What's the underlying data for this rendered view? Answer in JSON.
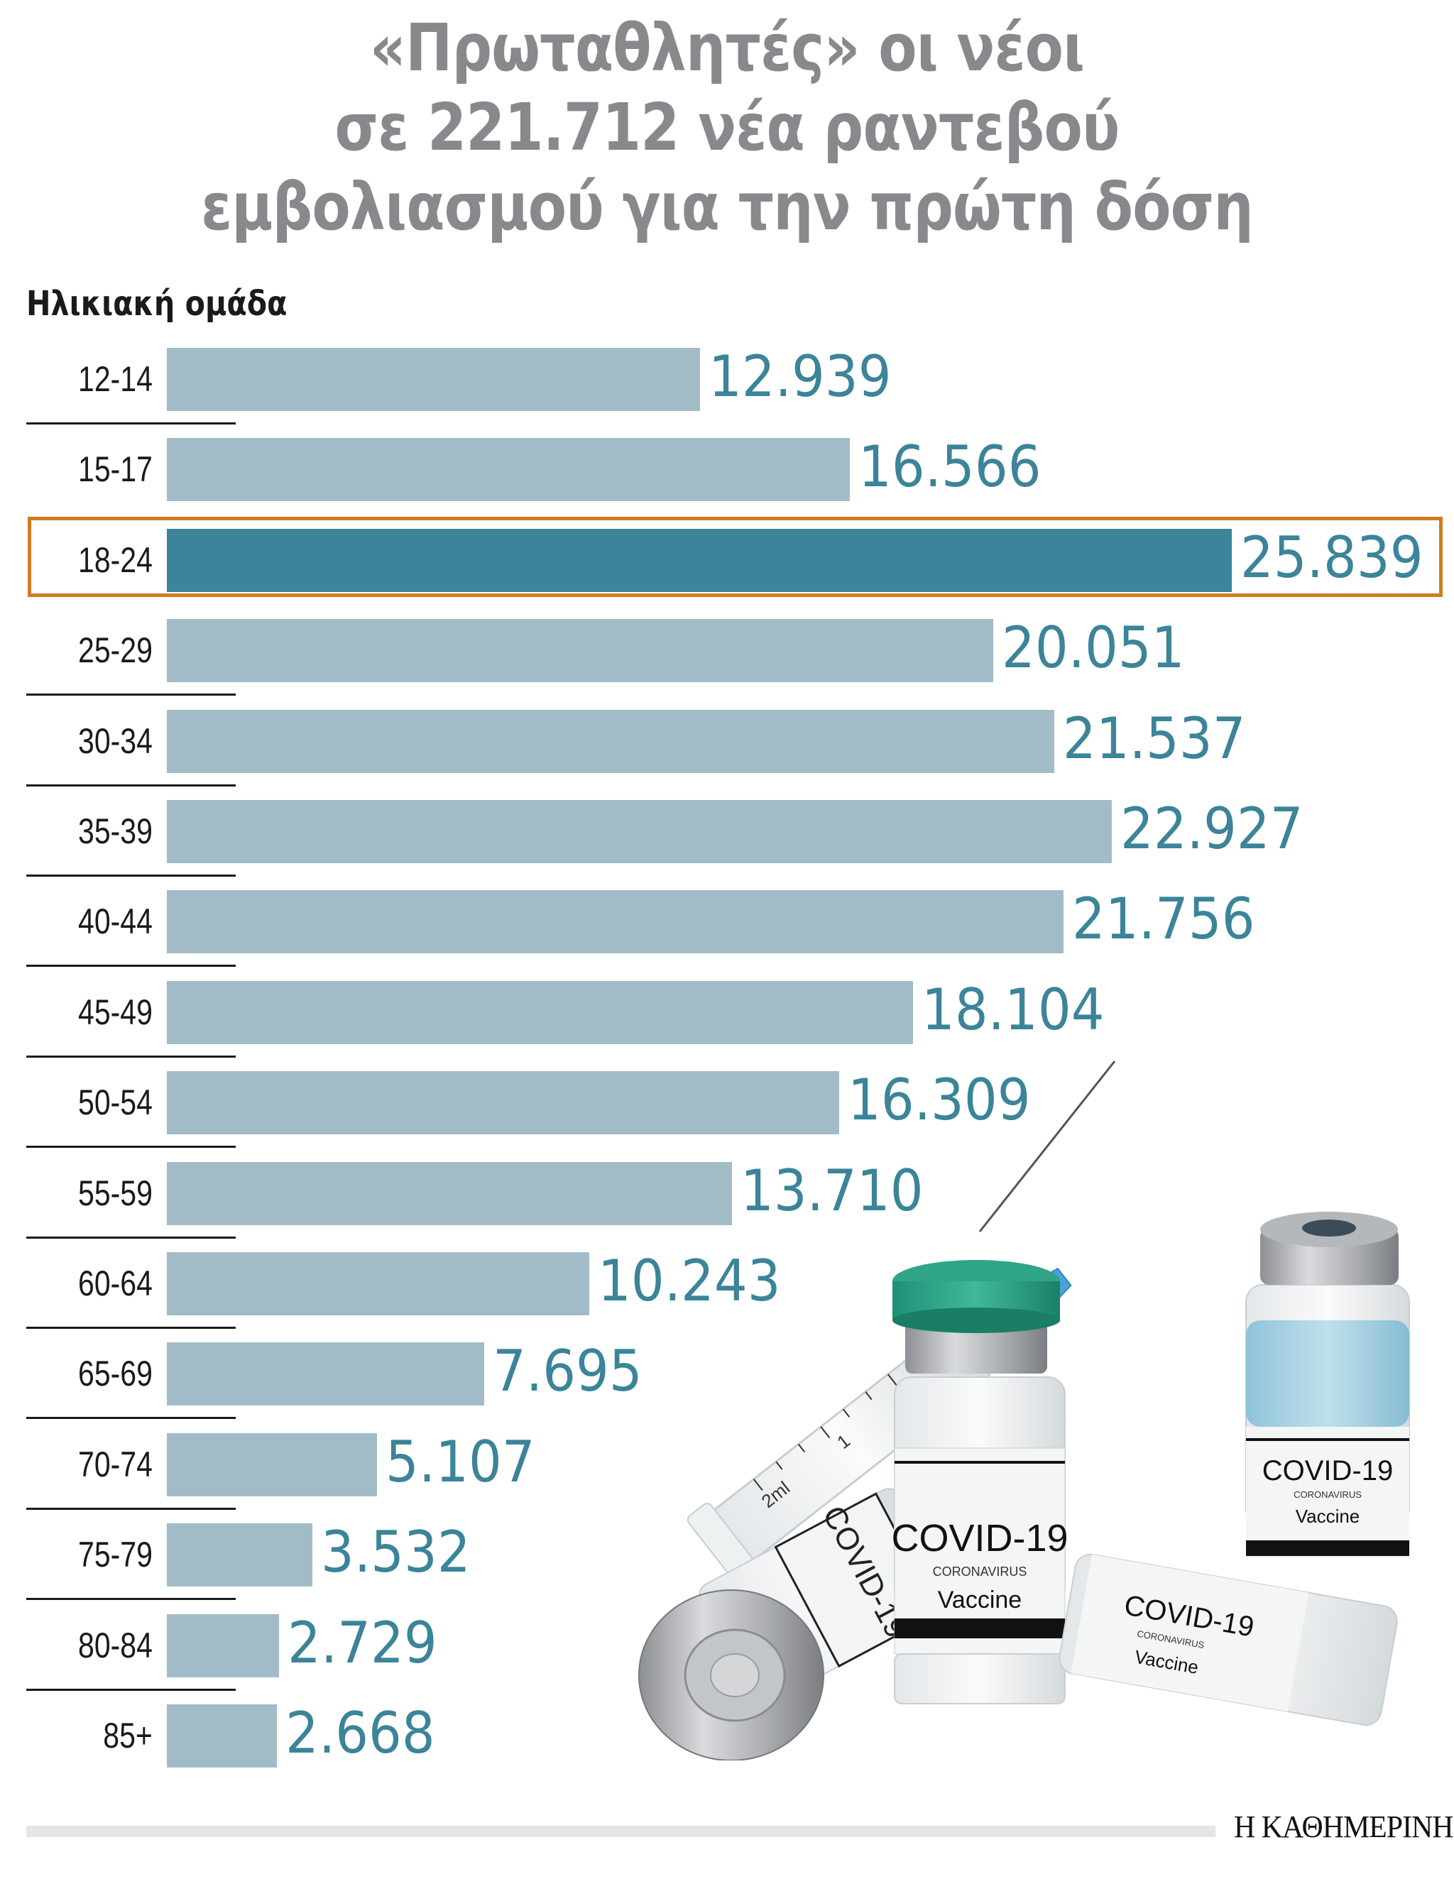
{
  "title": {
    "lines": [
      "«Πρωταθλητές» οι νέοι",
      "σε 221.712 νέα ραντεβού",
      "εμβολιασμού για την πρώτη δόση"
    ]
  },
  "axis_label": "Ηλικιακή ομάδα",
  "footer": {
    "logo": "Η ΚΑΘΗΜΕΡΙΝΗ"
  },
  "illustration": {
    "vial_labels": [
      "COVID-19",
      "CORONAVIRUS",
      "Vaccine"
    ],
    "syringe_marks": [
      "1",
      "2ml"
    ]
  },
  "colors": {
    "bar": "#a2bcc7",
    "bar_highlight": "#3b8499",
    "value_text": "#3b8499",
    "title_text": "#87898c",
    "highlight_border": "#d07d1e"
  },
  "rows": [
    {
      "label": "12-14",
      "value": "12.939"
    },
    {
      "label": "15-17",
      "value": "16.566"
    },
    {
      "label": "18-24",
      "value": "25.839"
    },
    {
      "label": "25-29",
      "value": "20.051"
    },
    {
      "label": "30-34",
      "value": "21.537"
    },
    {
      "label": "35-39",
      "value": "22.927"
    },
    {
      "label": "40-44",
      "value": "21.756"
    },
    {
      "label": "45-49",
      "value": "18.104"
    },
    {
      "label": "50-54",
      "value": "16.309"
    },
    {
      "label": "55-59",
      "value": "13.710"
    },
    {
      "label": "60-64",
      "value": "10.243"
    },
    {
      "label": "65-69",
      "value": "7.695"
    },
    {
      "label": "70-74",
      "value": "5.107"
    },
    {
      "label": "75-79",
      "value": "3.532"
    },
    {
      "label": "80-84",
      "value": "2.729"
    },
    {
      "label": "85+",
      "value": "2.668"
    }
  ],
  "chart_data": {
    "type": "bar",
    "orientation": "horizontal",
    "title": "«Πρωταθλητές» οι νέοι σε 221.712 νέα ραντεβού εμβολιασμού για την πρώτη δόση",
    "xlabel": "",
    "ylabel": "Ηλικιακή ομάδα",
    "categories": [
      "12-14",
      "15-17",
      "18-24",
      "25-29",
      "30-34",
      "35-39",
      "40-44",
      "45-49",
      "50-54",
      "55-59",
      "60-64",
      "65-69",
      "70-74",
      "75-79",
      "80-84",
      "85+"
    ],
    "values": [
      12939,
      16566,
      25839,
      20051,
      21537,
      22927,
      21756,
      18104,
      16309,
      13710,
      10243,
      7695,
      5107,
      3532,
      2729,
      2668
    ],
    "highlighted_category": "18-24",
    "total": 221712,
    "grid": false,
    "legend": null,
    "source": "Η ΚΑΘΗΜΕΡΙΝΗ"
  }
}
